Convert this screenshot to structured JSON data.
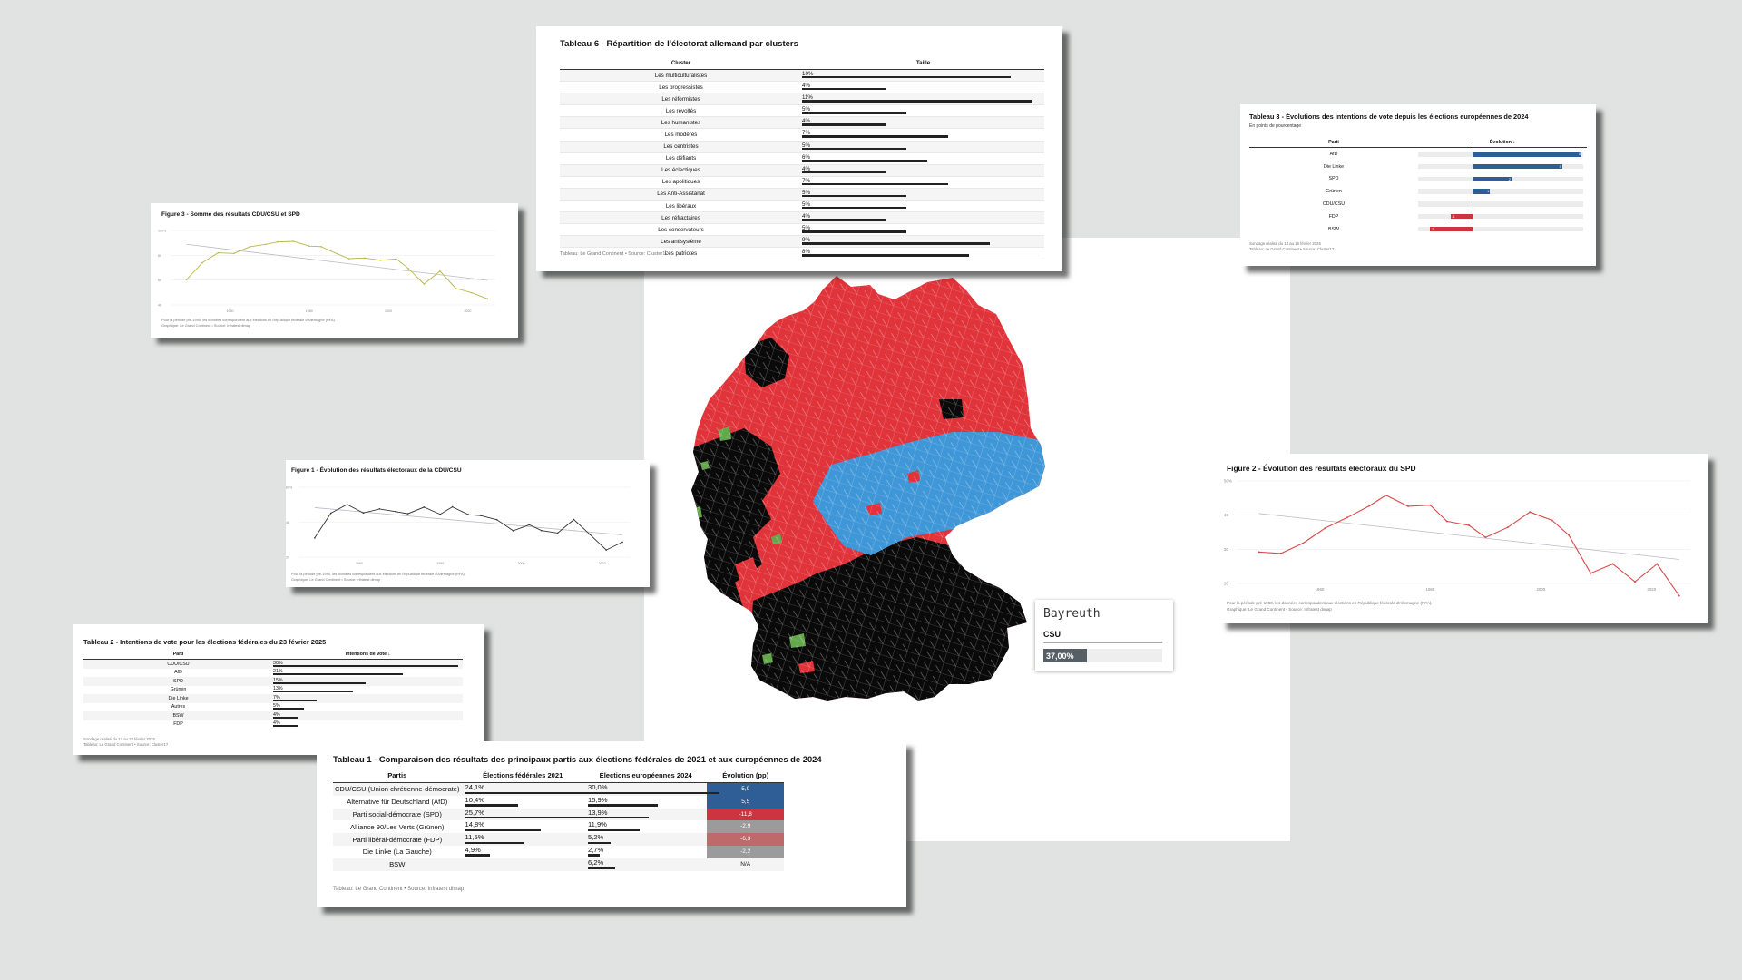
{
  "table6": {
    "title": "Tableau 6 - Répartition de l'électorat allemand par clusters",
    "col_cluster": "Cluster",
    "col_size": "Taille",
    "source": "Tableau: Le Grand Continent • Source: Cluster17",
    "rows": [
      {
        "name": "Les multiculturalistes",
        "label": "10%",
        "value": 10
      },
      {
        "name": "Les progressistes",
        "label": "4%",
        "value": 4
      },
      {
        "name": "Les réformistes",
        "label": "11%",
        "value": 11
      },
      {
        "name": "Les révoltés",
        "label": "5%",
        "value": 5
      },
      {
        "name": "Les humanistes",
        "label": "4%",
        "value": 4
      },
      {
        "name": "Les modérés",
        "label": "7%",
        "value": 7
      },
      {
        "name": "Les centristes",
        "label": "5%",
        "value": 5
      },
      {
        "name": "Les défiants",
        "label": "6%",
        "value": 6
      },
      {
        "name": "Les éclectiques",
        "label": "4%",
        "value": 4
      },
      {
        "name": "Les apolitiques",
        "label": "7%",
        "value": 7
      },
      {
        "name": "Les Anti-Assistanat",
        "label": "5%",
        "value": 5
      },
      {
        "name": "Les libéraux",
        "label": "5%",
        "value": 5
      },
      {
        "name": "Les réfractaires",
        "label": "4%",
        "value": 4
      },
      {
        "name": "Les conservateurs",
        "label": "5%",
        "value": 5
      },
      {
        "name": "Les antisystème",
        "label": "9%",
        "value": 9
      },
      {
        "name": "Les patriotes",
        "label": "8%",
        "value": 8
      }
    ]
  },
  "table3": {
    "title": "Tableau 3 - Évolutions des intentions de vote depuis les élections européennes de 2024",
    "subtitle": "En points de pourcentage",
    "col_party": "Parti",
    "col_evo": "Évolution ↓",
    "note1": "Sondage réalisé du 13 au 18 février 2025",
    "note2": "Tableau: Le Grand Continent • Source: Cluster17",
    "rows": [
      {
        "party": "AfD",
        "value": 5.6,
        "label": "6"
      },
      {
        "party": "Die Linke",
        "value": 4.6,
        "label": "5"
      },
      {
        "party": "SPD",
        "value": 2,
        "label": "2"
      },
      {
        "party": "Grünen",
        "value": 0.9,
        "label": "1"
      },
      {
        "party": "CDU/CSU",
        "value": 0,
        "label": ""
      },
      {
        "party": "FDP",
        "value": -1.1,
        "label": "-1"
      },
      {
        "party": "BSW",
        "value": -2.2,
        "label": "-2"
      }
    ]
  },
  "figure3": {
    "title": "Figure 3 - Somme des résultats CDU/CSU et SPD",
    "note1": "Pour la période pré-1990, les données correspondent aux élections en République fédérale d'Allemagne (RFA).",
    "note2": "Graphique: Le Grand Continent • Source: Infratest dimap",
    "yticks": [
      "100%",
      "80",
      "60",
      "40"
    ],
    "xticks": [
      "1960",
      "1980",
      "2000",
      "2020"
    ],
    "chart_data": {
      "type": "line",
      "title": "Figure 3 - Somme des résultats CDU/CSU et SPD",
      "x": [
        1949,
        1953,
        1957,
        1961,
        1965,
        1969,
        1972,
        1976,
        1980,
        1983,
        1987,
        1990,
        1994,
        1998,
        2002,
        2005,
        2009,
        2013,
        2017,
        2021,
        2025
      ],
      "values": [
        60.2,
        74.0,
        82.0,
        81.5,
        86.9,
        88.8,
        90.7,
        91.2,
        87.4,
        87.0,
        81.3,
        77.3,
        77.8,
        76.0,
        77.0,
        69.4,
        56.8,
        67.2,
        53.4,
        49.8,
        44.9
      ],
      "ylim": [
        40,
        100
      ]
    }
  },
  "figure1": {
    "title": "Figure 1 - Évolution des résultats électoraux de la CDU/CSU",
    "note1": "Pour la période pré-1990, les données correspondent aux élections en République fédérale d'Allemagne (RFA).",
    "note2": "Graphique: Le Grand Continent • Source: Infratest dimap",
    "yticks": [
      "60%",
      "40",
      "20"
    ],
    "xticks": [
      "1960",
      "1980",
      "2000",
      "2020"
    ],
    "chart_data": {
      "type": "line",
      "title": "Figure 1 - Évolution des résultats électoraux de la CDU/CSU",
      "x": [
        1949,
        1953,
        1957,
        1961,
        1965,
        1969,
        1972,
        1976,
        1980,
        1983,
        1987,
        1990,
        1994,
        1998,
        2002,
        2005,
        2009,
        2013,
        2017,
        2021,
        2025
      ],
      "values": [
        31.0,
        45.2,
        50.2,
        45.3,
        47.6,
        46.1,
        44.9,
        48.6,
        44.5,
        48.8,
        44.3,
        43.8,
        41.4,
        35.1,
        38.5,
        35.2,
        33.8,
        41.5,
        32.9,
        24.1,
        28.6
      ],
      "ylim": [
        20,
        60
      ]
    }
  },
  "figure2": {
    "title": "Figure 2 - Évolution des résultats électoraux du SPD",
    "note1": "Pour la période pré-1990, les données correspondent aux élections en République fédérale d'Allemagne (RFA).",
    "note2": "Graphique: Le Grand Continent • Source: Infratest dimap",
    "yticks": [
      "50%",
      "40",
      "30",
      "20"
    ],
    "xticks": [
      "1960",
      "1980",
      "2000",
      "2020"
    ],
    "chart_data": {
      "type": "line",
      "title": "Figure 2 - Évolution des résultats électoraux du SPD",
      "x": [
        1949,
        1953,
        1957,
        1961,
        1965,
        1969,
        1972,
        1976,
        1980,
        1983,
        1987,
        1990,
        1994,
        1998,
        2002,
        2005,
        2009,
        2013,
        2017,
        2021,
        2025
      ],
      "values": [
        29.2,
        28.8,
        31.8,
        36.2,
        39.3,
        42.7,
        45.8,
        42.6,
        42.9,
        38.2,
        37.0,
        33.5,
        36.4,
        40.9,
        38.5,
        34.2,
        23.0,
        25.7,
        20.5,
        25.7,
        16.4
      ],
      "ylim": [
        20,
        50
      ]
    }
  },
  "table2": {
    "title": "Tableau 2 - Intentions de vote pour les élections fédérales du 23 février 2025",
    "col_party": "Parti",
    "col_vote": "Intentions de vote ↓",
    "note1": "Sondage réalisé du 13 au 18 février 2025",
    "note2": "Tableau: Le Grand Continent • Source: Cluster17",
    "rows": [
      {
        "party": "CDU/CSU",
        "label": "30%",
        "value": 30
      },
      {
        "party": "AfD",
        "label": "21%",
        "value": 21
      },
      {
        "party": "SPD",
        "label": "15%",
        "value": 15
      },
      {
        "party": "Grünen",
        "label": "13%",
        "value": 13
      },
      {
        "party": "Die Linke",
        "label": "7%",
        "value": 7
      },
      {
        "party": "Autres",
        "label": "5%",
        "value": 5
      },
      {
        "party": "BSW",
        "label": "4%",
        "value": 4
      },
      {
        "party": "FDP",
        "label": "4%",
        "value": 4
      }
    ]
  },
  "table1": {
    "title": "Tableau 1 - Comparaison des résultats des principaux partis aux élections fédérales de 2021 et aux européennes de 2024",
    "col_party": "Partis",
    "col_2021": "Élections fédérales 2021",
    "col_2024": "Élections européennes 2024",
    "col_evo": "Évolution (pp)",
    "source": "Tableau: Le Grand Continent • Source: Infratest dimap",
    "rows": [
      {
        "party": "CDU/CSU (Union chrétienne-démocrate)",
        "v2021": "24,1%",
        "n2021": 24.1,
        "v2024": "30,0%",
        "n2024": 30.0,
        "evo": "5,9",
        "color": "#2e5e95"
      },
      {
        "party": "Alternative für Deutschland (AfD)",
        "v2021": "10,4%",
        "n2021": 10.4,
        "v2024": "15,9%",
        "n2024": 15.9,
        "evo": "5,5",
        "color": "#2e5e95"
      },
      {
        "party": "Parti social-démocrate (SPD)",
        "v2021": "25,7%",
        "n2021": 25.7,
        "v2024": "13,9%",
        "n2024": 13.9,
        "evo": "-11,8",
        "color": "#cc3540"
      },
      {
        "party": "Alliance 90/Les Verts (Grünen)",
        "v2021": "14,8%",
        "n2021": 14.8,
        "v2024": "11,9%",
        "n2024": 11.9,
        "evo": "-2,9",
        "color": "#9b9b9b"
      },
      {
        "party": "Parti libéral-démocrate (FDP)",
        "v2021": "11,5%",
        "n2021": 11.5,
        "v2024": "5,2%",
        "n2024": 5.2,
        "evo": "-6,3",
        "color": "#bf6a6a"
      },
      {
        "party": "Die Linke (La Gauche)",
        "v2021": "4,9%",
        "n2021": 4.9,
        "v2024": "2,7%",
        "n2024": 2.7,
        "evo": "-2,2",
        "color": "#9b9b9b"
      },
      {
        "party": "BSW",
        "v2021": "",
        "n2021": 0,
        "v2024": "6,2%",
        "n2024": 6.2,
        "evo": "N/A",
        "color": "transparent"
      }
    ]
  },
  "map": {
    "tooltip_place": "Bayreuth",
    "tooltip_party": "CSU",
    "tooltip_value": "37,00%",
    "tooltip_fraction": 0.37,
    "colors": {
      "cdu": "#0a0a0a",
      "afd": "#3f97d8",
      "spd": "#e0333a",
      "green": "#63a84a"
    }
  }
}
